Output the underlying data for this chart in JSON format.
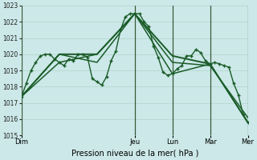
{
  "xlabel": "Pression niveau de la mer( hPa )",
  "bg_color": "#cce8e8",
  "grid_color": "#b0d4cc",
  "line_color": "#1a5c28",
  "ylim": [
    1015,
    1023
  ],
  "xlim": [
    0,
    144
  ],
  "ytick_values": [
    1015,
    1016,
    1017,
    1018,
    1019,
    1020,
    1021,
    1022,
    1023
  ],
  "day_ticks": [
    0,
    72,
    96,
    120,
    144
  ],
  "day_labels": [
    "Dim",
    "Jeu",
    "Lun",
    "Mar",
    "Mer"
  ],
  "day_sep_x": [
    0,
    72,
    96,
    120,
    144
  ],
  "series1_x": [
    0,
    3,
    6,
    9,
    12,
    15,
    18,
    21,
    24,
    27,
    30,
    33,
    36,
    39,
    42,
    45,
    48,
    51,
    54,
    57,
    60,
    63,
    66,
    69,
    72,
    75,
    78,
    81,
    84,
    87,
    90,
    93,
    96,
    99,
    102,
    105,
    108,
    111,
    114,
    117,
    120,
    123,
    126,
    129,
    132,
    135,
    138,
    141,
    144
  ],
  "series1_y": [
    1017.4,
    1018.2,
    1019.0,
    1019.5,
    1019.9,
    1020.0,
    1020.0,
    1019.7,
    1019.5,
    1019.3,
    1019.7,
    1019.6,
    1020.0,
    1020.0,
    1019.8,
    1018.5,
    1018.3,
    1018.1,
    1018.6,
    1019.6,
    1020.2,
    1021.5,
    1022.3,
    1022.5,
    1022.5,
    1022.5,
    1022.0,
    1021.7,
    1020.5,
    1019.8,
    1018.9,
    1018.7,
    1018.8,
    1019.1,
    1019.3,
    1019.9,
    1019.9,
    1020.3,
    1020.1,
    1019.6,
    1019.4,
    1019.5,
    1019.4,
    1019.3,
    1019.2,
    1018.2,
    1017.5,
    1016.3,
    1015.8
  ],
  "series2_x": [
    0,
    24,
    48,
    72,
    96,
    120,
    144
  ],
  "series2_y": [
    1017.4,
    1020.0,
    1020.0,
    1022.5,
    1019.9,
    1019.4,
    1015.8
  ],
  "series3_x": [
    0,
    24,
    48,
    72,
    96,
    120,
    144
  ],
  "series3_y": [
    1017.4,
    1020.0,
    1019.5,
    1022.5,
    1018.8,
    1019.4,
    1015.8
  ],
  "series4_x": [
    0,
    24,
    48,
    72,
    96,
    120,
    144
  ],
  "series4_y": [
    1017.4,
    1019.5,
    1020.0,
    1022.5,
    1019.5,
    1019.3,
    1016.1
  ]
}
